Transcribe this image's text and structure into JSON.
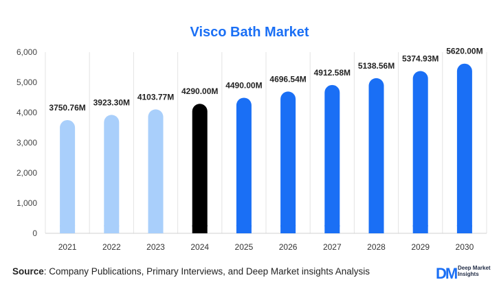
{
  "title": "Visco Bath Market",
  "source": {
    "label": "Source",
    "text": ": Company Publications, Primary Interviews, and Deep Market insights Analysis"
  },
  "logo": {
    "mark": "DM",
    "name": "Deep Market Insights"
  },
  "chart_data": {
    "type": "bar",
    "title": "Visco Bath Market",
    "categories": [
      "2021",
      "2022",
      "2023",
      "2024",
      "2025",
      "2026",
      "2027",
      "2028",
      "2029",
      "2030"
    ],
    "values": [
      3750.76,
      3923.3,
      4103.77,
      4290.0,
      4490.0,
      4696.54,
      4912.58,
      5138.56,
      5374.93,
      5620.0
    ],
    "data_labels": [
      "3750.76M",
      "3923.30M",
      "4103.77M",
      "4290.00M",
      "4490.00M",
      "4696.54M",
      "4912.58M",
      "5138.56M",
      "5374.93M",
      "5620.00M"
    ],
    "bar_colors": [
      "#a9cffb",
      "#a9cffb",
      "#a9cffb",
      "#000000",
      "#1a6ff5",
      "#1a6ff5",
      "#1a6ff5",
      "#1a6ff5",
      "#1a6ff5",
      "#1a6ff5"
    ],
    "ylim": [
      0,
      6000
    ],
    "yticks": [
      0,
      1000,
      2000,
      3000,
      4000,
      5000,
      6000
    ],
    "ytick_labels": [
      "0",
      "1,000",
      "2,000",
      "3,000",
      "4,000",
      "5,000",
      "6,000"
    ],
    "grid": "vertical",
    "legend": "none"
  }
}
